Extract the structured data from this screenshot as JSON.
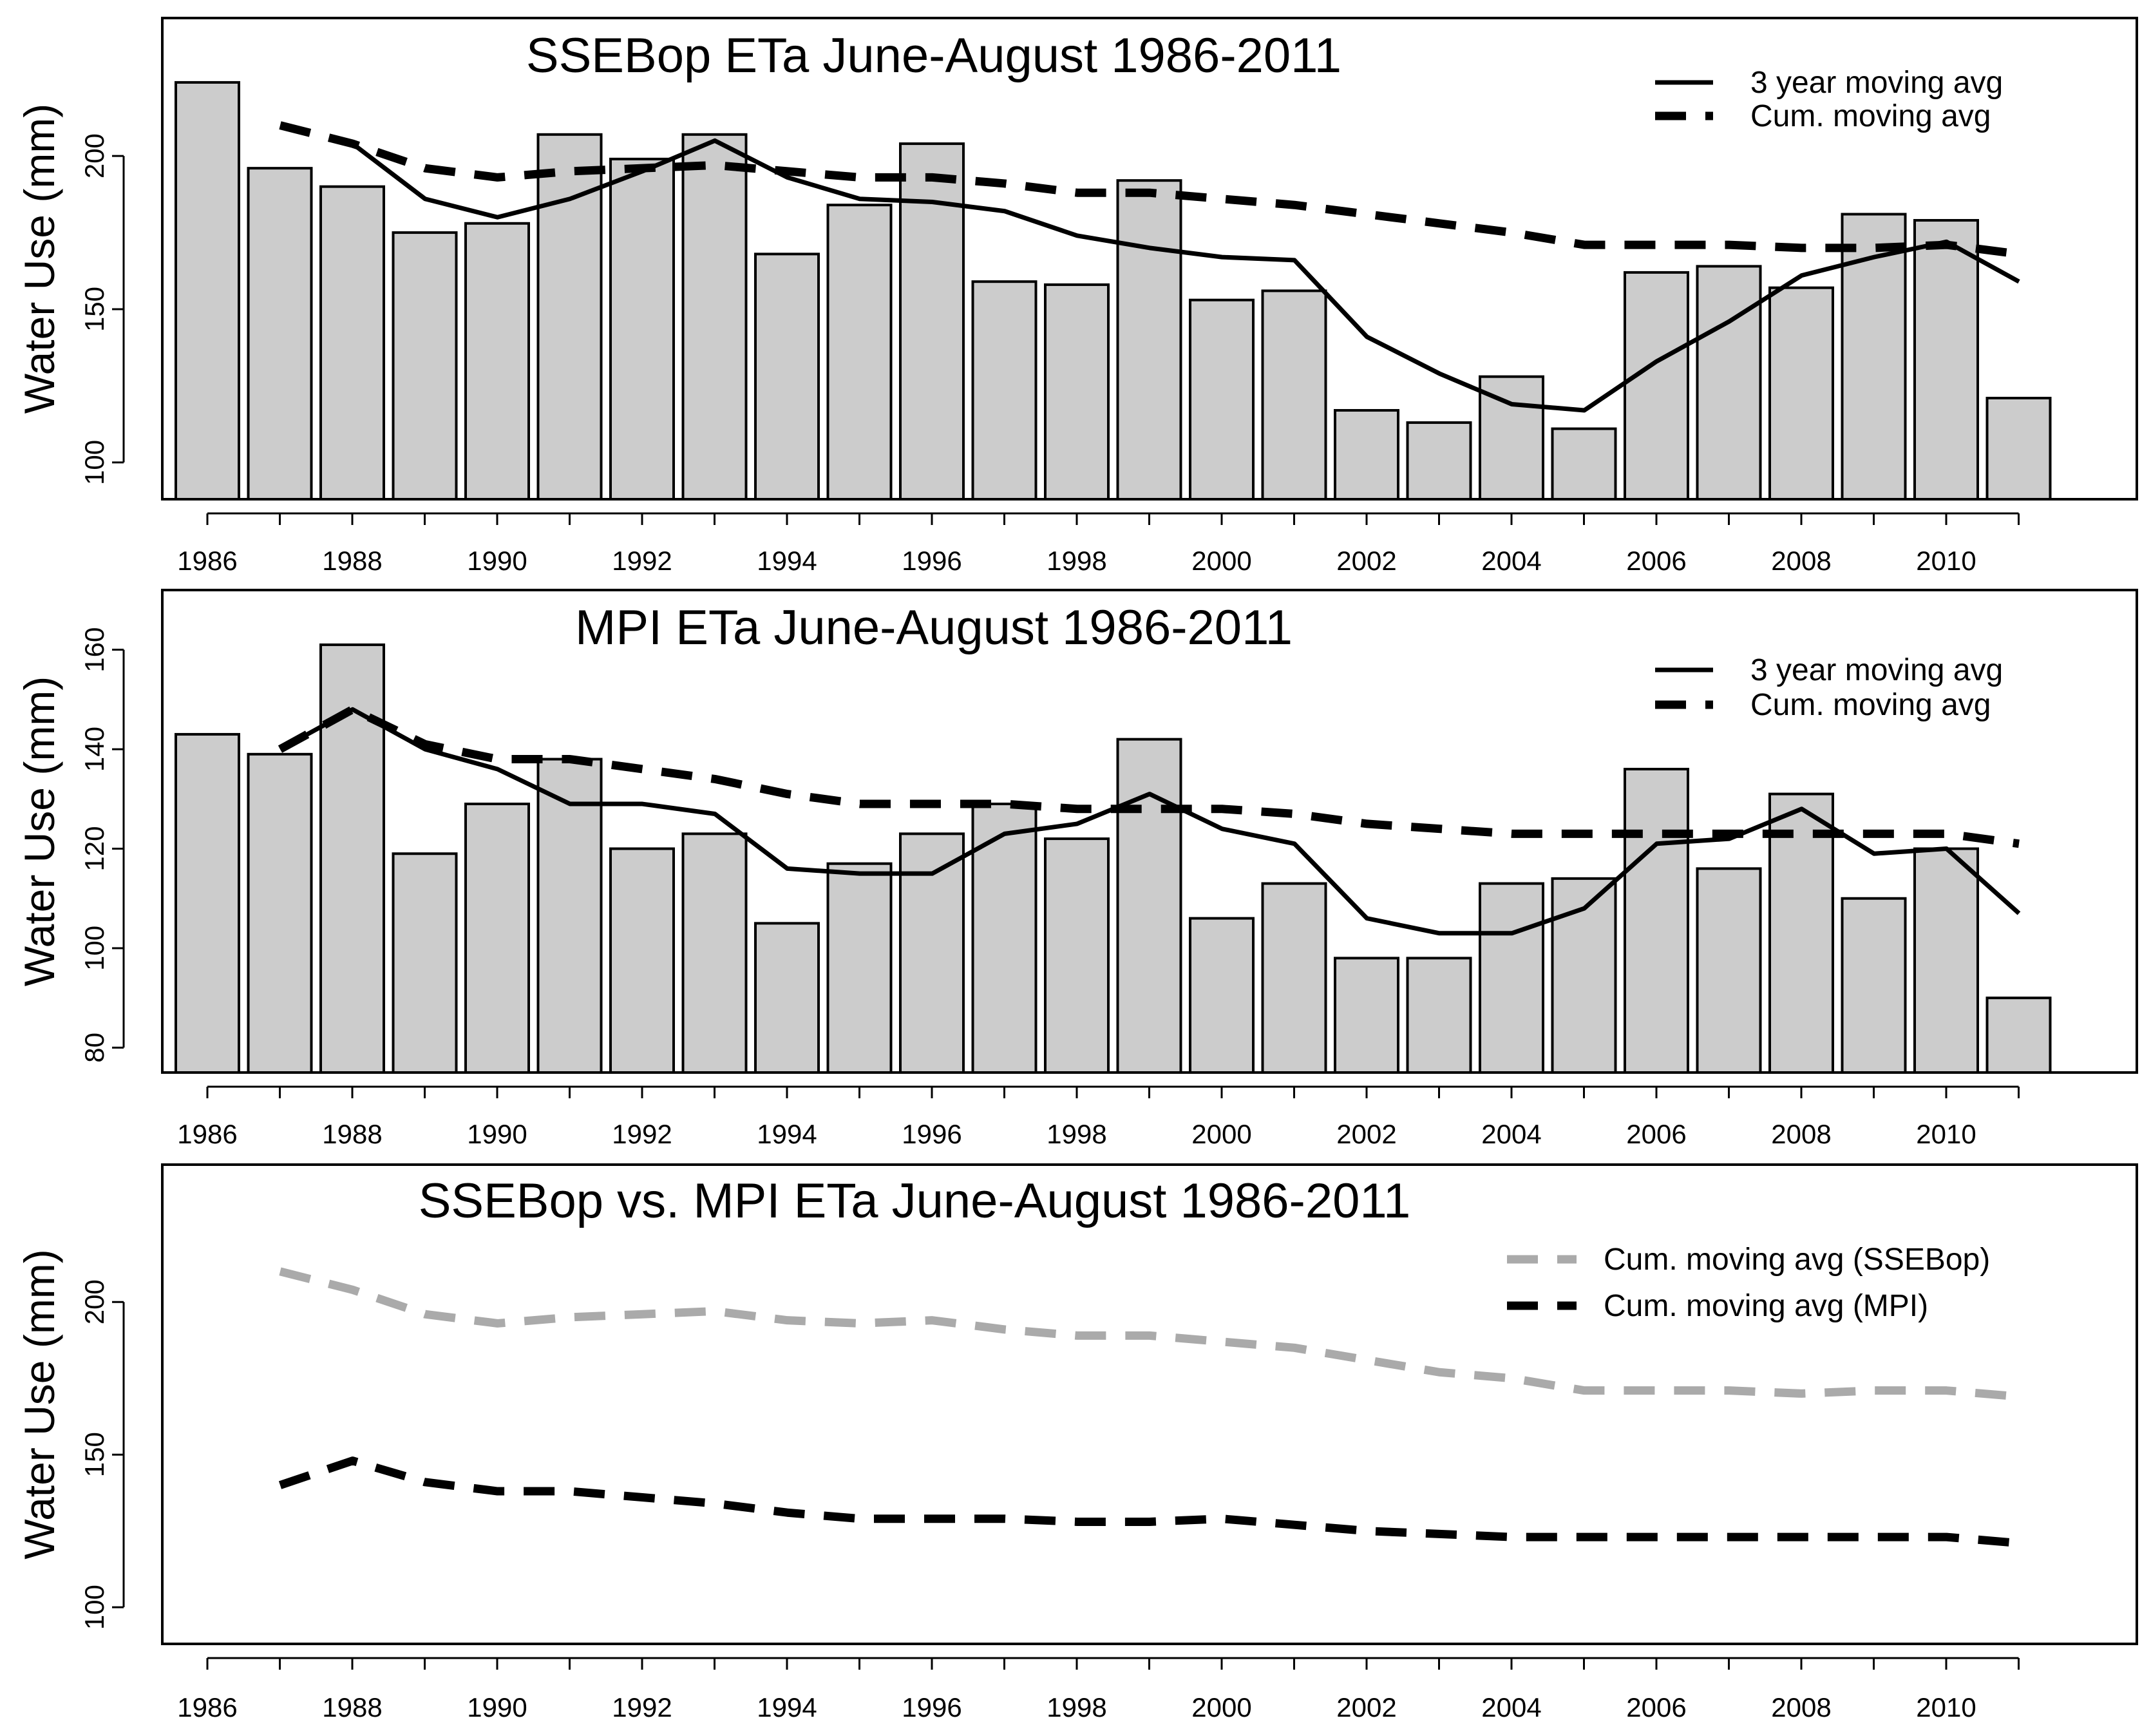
{
  "chart_data": [
    {
      "type": "bar",
      "title": "SSEBop ETa June-August 1986-2011",
      "ylabel": "Water Use (mm)",
      "xlabel": "",
      "ylim": [
        88,
        245
      ],
      "yticks": [
        100,
        150,
        200
      ],
      "x": [
        1986,
        1987,
        1988,
        1989,
        1990,
        1991,
        1992,
        1993,
        1994,
        1995,
        1996,
        1997,
        1998,
        1999,
        2000,
        2001,
        2002,
        2003,
        2004,
        2005,
        2006,
        2007,
        2008,
        2009,
        2010,
        2011
      ],
      "xtick_labels": [
        "1986",
        "1988",
        "1990",
        "1992",
        "1994",
        "1996",
        "1998",
        "2000",
        "2002",
        "2004",
        "2006",
        "2008",
        "2010"
      ],
      "values": [
        224,
        196,
        190,
        175,
        178,
        207,
        199,
        207,
        168,
        184,
        204,
        159,
        158,
        192,
        153,
        156,
        117,
        113,
        128,
        111,
        162,
        164,
        157,
        181,
        179,
        121
      ],
      "series": [
        {
          "name": "3 year moving avg",
          "style": "solid",
          "color": "#000000",
          "x": [
            1988,
            1989,
            1990,
            1991,
            1992,
            1993,
            1994,
            1995,
            1996,
            1997,
            1998,
            1999,
            2000,
            2001,
            2002,
            2003,
            2004,
            2005,
            2006,
            2007,
            2008,
            2009,
            2010,
            2011
          ],
          "values": [
            204,
            186,
            180,
            186,
            195,
            205,
            193,
            186,
            185,
            182,
            174,
            170,
            167,
            166,
            141,
            129,
            119,
            117,
            133,
            146,
            161,
            167,
            172,
            159
          ]
        },
        {
          "name": "Cum. moving avg",
          "style": "dashed",
          "color": "#000000",
          "x": [
            1987,
            1988,
            1989,
            1990,
            1991,
            1992,
            1993,
            1994,
            1995,
            1996,
            1997,
            1998,
            1999,
            2000,
            2001,
            2002,
            2003,
            2004,
            2005,
            2006,
            2007,
            2008,
            2009,
            2010,
            2011
          ],
          "values": [
            210,
            204,
            196,
            193,
            195,
            196,
            197,
            195,
            193,
            193,
            191,
            188,
            188,
            186,
            184,
            181,
            178,
            175,
            171,
            171,
            171,
            170,
            170,
            171,
            168
          ]
        }
      ],
      "legend": "top-right"
    },
    {
      "type": "bar",
      "title": "MPI ETa June-August 1986-2011",
      "ylabel": "Water Use (mm)",
      "xlabel": "",
      "ylim": [
        75,
        172
      ],
      "yticks": [
        80,
        100,
        120,
        140,
        160
      ],
      "x": [
        1986,
        1987,
        1988,
        1989,
        1990,
        1991,
        1992,
        1993,
        1994,
        1995,
        1996,
        1997,
        1998,
        1999,
        2000,
        2001,
        2002,
        2003,
        2004,
        2005,
        2006,
        2007,
        2008,
        2009,
        2010,
        2011
      ],
      "xtick_labels": [
        "1986",
        "1988",
        "1990",
        "1992",
        "1994",
        "1996",
        "1998",
        "2000",
        "2002",
        "2004",
        "2006",
        "2008",
        "2010"
      ],
      "values": [
        143,
        139,
        161,
        119,
        129,
        138,
        120,
        123,
        105,
        117,
        123,
        129,
        122,
        142,
        106,
        113,
        98,
        98,
        113,
        114,
        136,
        116,
        131,
        110,
        120,
        90
      ],
      "series": [
        {
          "name": "3 year moving avg",
          "style": "solid",
          "color": "#000000",
          "x": [
            1987,
            1988,
            1989,
            1990,
            1991,
            1992,
            1993,
            1994,
            1995,
            1996,
            1997,
            1998,
            1999,
            2000,
            2001,
            2002,
            2003,
            2004,
            2005,
            2006,
            2007,
            2008,
            2009,
            2010,
            2011
          ],
          "values": [
            140,
            148,
            140,
            136,
            129,
            129,
            127,
            116,
            115,
            115,
            123,
            125,
            131,
            124,
            121,
            106,
            103,
            103,
            108,
            121,
            122,
            128,
            119,
            120,
            107
          ]
        },
        {
          "name": "Cum. moving avg",
          "style": "dashed",
          "color": "#000000",
          "x": [
            1987,
            1988,
            1989,
            1990,
            1991,
            1992,
            1993,
            1994,
            1995,
            1996,
            1997,
            1998,
            1999,
            2000,
            2001,
            2002,
            2003,
            2004,
            2005,
            2006,
            2007,
            2008,
            2009,
            2010,
            2011
          ],
          "values": [
            140,
            148,
            141,
            138,
            138,
            136,
            134,
            131,
            129,
            129,
            129,
            128,
            128,
            128,
            127,
            125,
            124,
            123,
            123,
            123,
            123,
            123,
            123,
            123,
            121
          ]
        }
      ],
      "legend": "top-right"
    },
    {
      "type": "line",
      "title": "SSEBop vs. MPI ETa June-August 1986-2011",
      "ylabel": "Water Use (mm)",
      "xlabel": "",
      "ylim": [
        88,
        245
      ],
      "yticks": [
        100,
        150,
        200
      ],
      "x": [
        1986,
        1987,
        1988,
        1989,
        1990,
        1991,
        1992,
        1993,
        1994,
        1995,
        1996,
        1997,
        1998,
        1999,
        2000,
        2001,
        2002,
        2003,
        2004,
        2005,
        2006,
        2007,
        2008,
        2009,
        2010,
        2011
      ],
      "xtick_labels": [
        "1986",
        "1988",
        "1990",
        "1992",
        "1994",
        "1996",
        "1998",
        "2000",
        "2002",
        "2004",
        "2006",
        "2008",
        "2010"
      ],
      "series": [
        {
          "name": "Cum. moving avg (SSEBop)",
          "style": "dashed",
          "color": "#aaaaaa",
          "x": [
            1987,
            1988,
            1989,
            1990,
            1991,
            1992,
            1993,
            1994,
            1995,
            1996,
            1997,
            1998,
            1999,
            2000,
            2001,
            2002,
            2003,
            2004,
            2005,
            2006,
            2007,
            2008,
            2009,
            2010,
            2011
          ],
          "values": [
            210,
            204,
            196,
            193,
            195,
            196,
            197,
            194,
            193,
            194,
            191,
            189,
            189,
            187,
            185,
            181,
            177,
            175,
            171,
            171,
            171,
            170,
            171,
            171,
            169
          ]
        },
        {
          "name": "Cum. moving avg (MPI)",
          "style": "dashed",
          "color": "#000000",
          "x": [
            1987,
            1988,
            1989,
            1990,
            1991,
            1992,
            1993,
            1994,
            1995,
            1996,
            1997,
            1998,
            1999,
            2000,
            2001,
            2002,
            2003,
            2004,
            2005,
            2006,
            2007,
            2008,
            2009,
            2010,
            2011
          ],
          "values": [
            140,
            148,
            141,
            138,
            138,
            136,
            134,
            131,
            129,
            129,
            129,
            128,
            128,
            129,
            127,
            125,
            124,
            123,
            123,
            123,
            123,
            123,
            123,
            123,
            121
          ]
        }
      ],
      "legend": "top-right"
    }
  ]
}
